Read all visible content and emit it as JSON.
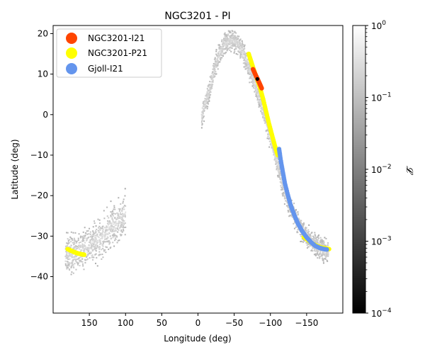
{
  "chart_data": {
    "type": "scatter",
    "title": "NGC3201 - PI",
    "xlabel": "Longitude (deg)",
    "ylabel": "Latitude (deg)",
    "xlim": [
      200,
      -200
    ],
    "ylim": [
      -49,
      22
    ],
    "xticks": [
      150,
      100,
      50,
      0,
      -50,
      -100,
      -150
    ],
    "xtick_labels": [
      "150",
      "100",
      "50",
      "0",
      "−50",
      "−100",
      "−150"
    ],
    "yticks": [
      20,
      10,
      0,
      -10,
      -20,
      -30,
      -40
    ],
    "ytick_labels": [
      "20",
      "10",
      "0",
      "−10",
      "−20",
      "−30",
      "−40"
    ],
    "legend_position": "top-left",
    "series": [
      {
        "name": "NGC3201-I21",
        "color": "#ff4500",
        "x": [
          -76,
          -78,
          -80,
          -82,
          -84,
          -86,
          -88
        ],
        "y": [
          11.2,
          10.4,
          9.6,
          8.9,
          8.1,
          7.3,
          6.5
        ]
      },
      {
        "name": "NGC3201-P21",
        "color": "#ffff00",
        "x": [
          -70,
          -74,
          -78,
          -82,
          -86,
          -90,
          -94,
          -98,
          -102,
          -106,
          -110
        ],
        "y": [
          15.0,
          12.8,
          10.6,
          8.6,
          6.4,
          3.8,
          0.8,
          -2.2,
          -4.9,
          -7.6,
          -10.0
        ],
        "x2": [
          180,
          175,
          170,
          165,
          160,
          157
        ],
        "y2": [
          -33.2,
          -33.6,
          -34.0,
          -34.3,
          -34.5,
          -34.6
        ],
        "x3": [
          -146,
          -152,
          -158,
          -164,
          -170,
          -176,
          -181
        ],
        "y3": [
          -30.2,
          -31.0,
          -31.8,
          -32.4,
          -32.8,
          -33.0,
          -33.2
        ]
      },
      {
        "name": "Gjoll-I21",
        "color": "#6495ed",
        "x": [
          -112,
          -114,
          -117,
          -120,
          -124,
          -128,
          -133,
          -138,
          -144,
          -150,
          -156,
          -162,
          -168,
          -174,
          -178
        ],
        "y": [
          -8.5,
          -11.0,
          -14.0,
          -17.0,
          -19.8,
          -22.4,
          -24.8,
          -26.9,
          -28.8,
          -30.3,
          -31.5,
          -32.4,
          -32.9,
          -33.2,
          -33.3
        ]
      }
    ],
    "highlight_points": [
      {
        "x": -82,
        "y": 8.8,
        "color": "#000000"
      }
    ],
    "density_stream": {
      "x": [
        -5,
        -10,
        -15,
        -20,
        -25,
        -30,
        -35,
        -40,
        -45,
        -50,
        -55,
        -60,
        -65,
        -70,
        -75,
        -80,
        -85,
        -90,
        -95,
        -100,
        -105,
        -110,
        -115,
        -120,
        -125,
        -130,
        -135,
        -140,
        -145,
        -150,
        -155,
        -160,
        -165,
        -170,
        -175,
        -180
      ],
      "y": [
        -0.5,
        2.5,
        5.5,
        9.0,
        12.5,
        15.5,
        17.0,
        18.0,
        18.4,
        18.2,
        17.5,
        16.0,
        14.0,
        12.0,
        9.5,
        7.0,
        4.0,
        1.0,
        -2.0,
        -5.5,
        -9.0,
        -12.5,
        -16.0,
        -19.0,
        -21.5,
        -24.0,
        -26.0,
        -27.5,
        -29.0,
        -30.0,
        -31.0,
        -31.8,
        -32.5,
        -33.0,
        -33.5,
        -34.0
      ]
    },
    "density_tail": {
      "x": [
        183,
        175,
        165,
        155,
        145,
        135,
        125,
        115,
        105,
        100
      ],
      "y": [
        -34.5,
        -34.5,
        -34.0,
        -33.0,
        -32.0,
        -30.5,
        -29.0,
        -27.0,
        -25.5,
        -24.5
      ]
    },
    "colorbar": {
      "label": "𝓛",
      "scale": "log",
      "range": [
        0.0001,
        1
      ],
      "ticks": [
        {
          "base": "10",
          "exp": "0",
          "value": 1
        },
        {
          "base": "10",
          "exp": "−1",
          "value": 0.1
        },
        {
          "base": "10",
          "exp": "−2",
          "value": 0.01
        },
        {
          "base": "10",
          "exp": "−3",
          "value": 0.001
        },
        {
          "base": "10",
          "exp": "−4",
          "value": 0.0001
        }
      ],
      "colors": [
        "#000000",
        "#ffffff"
      ]
    }
  }
}
